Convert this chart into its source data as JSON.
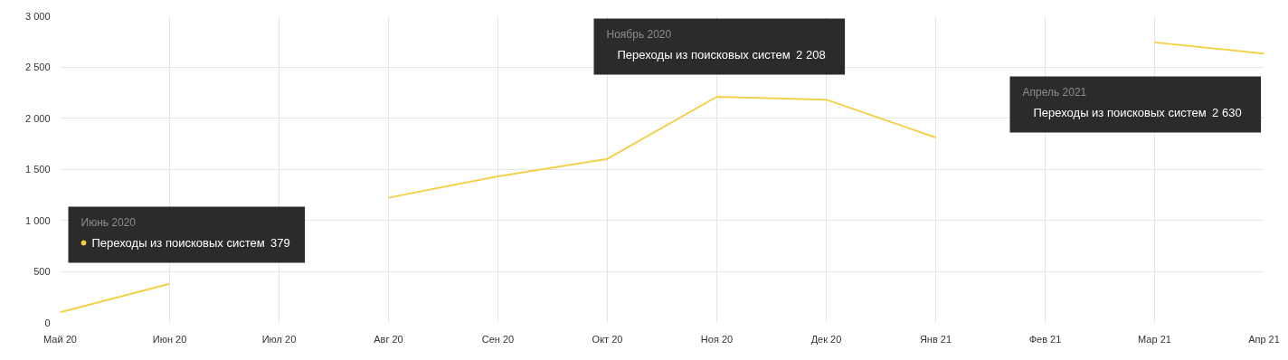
{
  "chart_data": {
    "type": "line",
    "categories": [
      "Май 20",
      "Июн 20",
      "Июл 20",
      "Авг 20",
      "Сен 20",
      "Окт 20",
      "Ноя 20",
      "Дек 20",
      "Янв 21",
      "Фев 21",
      "Мар 21",
      "Апр 21"
    ],
    "series": [
      {
        "name": "Переходы из поисковых систем",
        "color": "#f5d04b",
        "values": [
          100,
          379,
          null,
          1220,
          1430,
          1600,
          2208,
          2180,
          1810,
          null,
          2740,
          2630
        ]
      }
    ],
    "ylim": [
      0,
      3000
    ],
    "yticks": [
      0,
      {
        "value": 500,
        "label": "500"
      },
      {
        "value": 1000,
        "label": "1 000"
      },
      {
        "value": 1500,
        "label": "1 500"
      },
      {
        "value": 2000,
        "label": "2 000"
      },
      {
        "value": 2500,
        "label": "2 500"
      },
      {
        "value": 3000,
        "label": "3 000"
      }
    ],
    "annotations": [
      "Июнь 2020",
      "379",
      "Ноябрь 2020",
      "2 208",
      "Апрель 2021",
      "2 630"
    ],
    "grid": true,
    "legend": "bottom left",
    "marker": "none",
    "line_style": "solid"
  }
}
